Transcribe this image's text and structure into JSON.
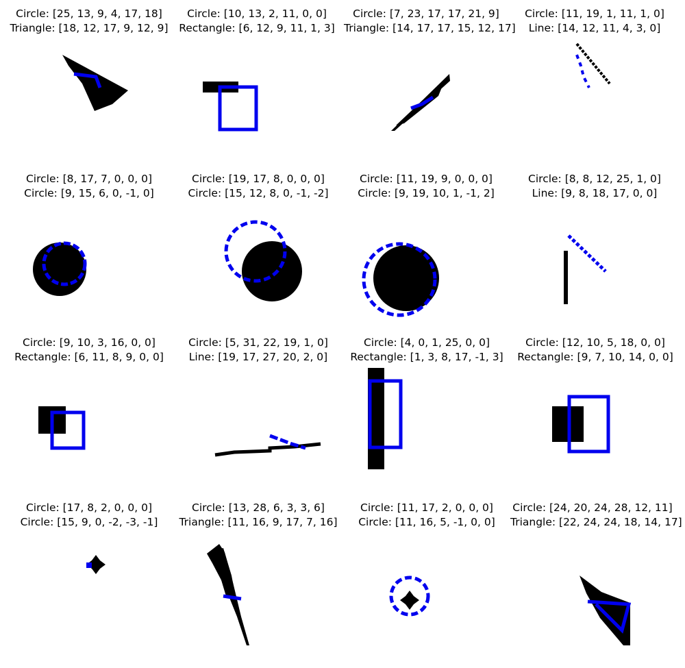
{
  "panels": [
    {
      "pred": "Circle: [25, 13, 9, 4, 17, 18]",
      "target": "Triangle: [18, 12, 17, 9, 12, 9]"
    },
    {
      "pred": "Circle: [10, 13, 2, 11, 0, 0]",
      "target": "Rectangle: [6, 12, 9, 11, 1, 3]"
    },
    {
      "pred": "Circle: [7, 23, 17, 17, 21, 9]",
      "target": "Triangle: [14, 17, 17, 15, 12, 17]"
    },
    {
      "pred": "Circle: [11, 19, 1, 11, 1, 0]",
      "target": "Line: [14, 12, 11, 4, 3, 0]"
    },
    {
      "pred": "Circle: [8, 17, 7, 0, 0, 0]",
      "target": "Circle: [9, 15, 6, 0, -1, 0]"
    },
    {
      "pred": "Circle: [19, 17, 8, 0, 0, 0]",
      "target": "Circle: [15, 12, 8, 0, -1, -2]"
    },
    {
      "pred": "Circle: [11, 19, 9, 0, 0, 0]",
      "target": "Circle: [9, 19, 10, 1, -1, 2]"
    },
    {
      "pred": "Circle: [8, 8, 12, 25, 1, 0]",
      "target": "Line: [9, 8, 18, 17, 0, 0]"
    },
    {
      "pred": "Circle: [9, 10, 3, 16, 0, 0]",
      "target": "Rectangle: [6, 11, 8, 9, 0, 0]"
    },
    {
      "pred": "Circle: [5, 31, 22, 19, 1, 0]",
      "target": "Line: [19, 17, 27, 20, 2, 0]"
    },
    {
      "pred": "Circle: [4, 0, 1, 25, 0, 0]",
      "target": "Rectangle: [1, 3, 8, 17, -1, 3]"
    },
    {
      "pred": "Circle: [12, 10, 5, 18, 0, 0]",
      "target": "Rectangle: [9, 7, 10, 14, 0, 0]"
    },
    {
      "pred": "Circle: [17, 8, 2, 0, 0, 0]",
      "target": "Circle: [15, 9, 0, -2, -3, -1]"
    },
    {
      "pred": "Circle: [13, 28, 6, 3, 3, 6]",
      "target": "Triangle: [11, 16, 9, 17, 7, 16]"
    },
    {
      "pred": "Circle: [11, 17, 2, 0, 0, 0]",
      "target": "Circle: [11, 16, 5, -1, 0, 0]"
    },
    {
      "pred": "Circle: [24, 20, 24, 28, 12, 11]",
      "target": "Triangle: [22, 24, 24, 18, 14, 17]"
    }
  ],
  "colors": {
    "shape": "#000000",
    "overlay": "#0000ee",
    "background": "#ffffff"
  }
}
